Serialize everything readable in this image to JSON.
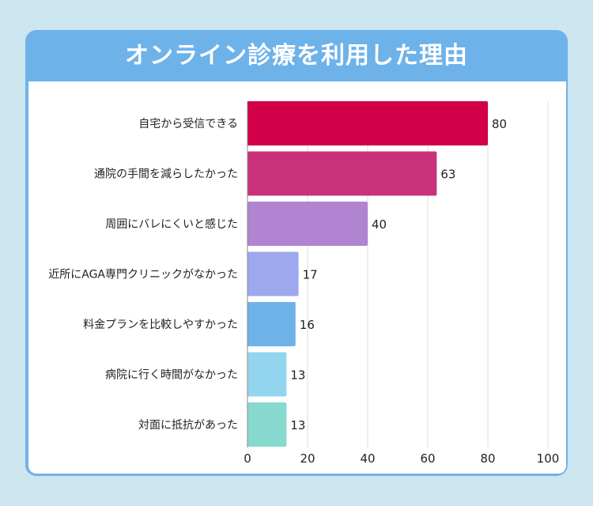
{
  "colors": {
    "background": "#cde6ef",
    "header": "#6eb2ea",
    "panel": "#ffffff",
    "bars": [
      "#d10049",
      "#c9327a",
      "#b184d2",
      "#9ea8ec",
      "#6eb2ea",
      "#93d5ee",
      "#87d9cf"
    ]
  },
  "chart_data": {
    "type": "bar",
    "orientation": "horizontal",
    "title": "オンライン診療を利用した理由",
    "categories": [
      "自宅から受信できる",
      "通院の手間を減らしたかった",
      "周囲にバレにくいと感じた",
      "近所にAGA専門クリニックがなかった",
      "料金プランを比較しやすかった",
      "病院に行く時間がなかった",
      "対面に抵抗があった"
    ],
    "values": [
      80,
      63,
      40,
      17,
      16,
      13,
      13
    ],
    "xlim": [
      0,
      100
    ],
    "xticks": [
      0,
      20,
      40,
      60,
      80,
      100
    ],
    "xlabel": "",
    "ylabel": "",
    "grid": true,
    "legend": "none"
  }
}
